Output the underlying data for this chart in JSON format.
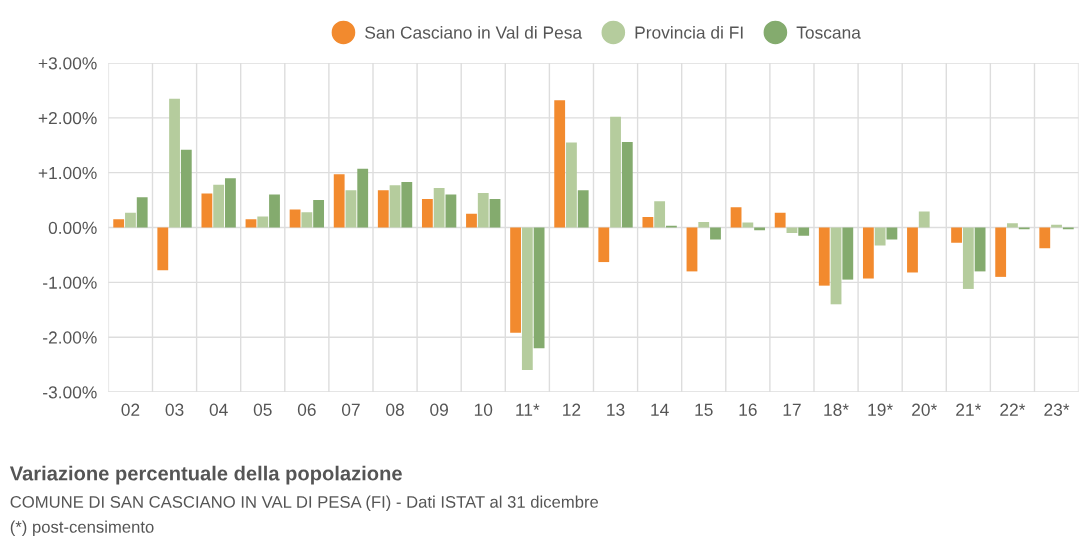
{
  "chart_data": {
    "type": "bar",
    "title": "Variazione percentuale della popolazione",
    "subtitle": "COMUNE DI SAN CASCIANO IN VAL DI PESA (FI) - Dati ISTAT al 31 dicembre",
    "annotations": [
      "(*) post-censimento"
    ],
    "categories": [
      "02",
      "03",
      "04",
      "05",
      "06",
      "07",
      "08",
      "09",
      "10",
      "11*",
      "12",
      "13",
      "14",
      "15",
      "16",
      "17",
      "18*",
      "19*",
      "20*",
      "21*",
      "22*",
      "23*"
    ],
    "series": [
      {
        "name": "San Casciano in Val di Pesa",
        "color": "#f28a2e",
        "values": [
          0.15,
          -0.78,
          0.62,
          0.15,
          0.33,
          0.97,
          0.68,
          0.52,
          0.25,
          -1.92,
          2.32,
          -0.63,
          0.19,
          -0.8,
          0.37,
          0.27,
          -1.06,
          -0.93,
          -0.82,
          -0.28,
          -0.9,
          -0.38
        ]
      },
      {
        "name": "Provincia di FI",
        "color": "#b5cc9d",
        "values": [
          0.27,
          2.35,
          0.78,
          0.2,
          0.28,
          0.68,
          0.77,
          0.72,
          0.63,
          -2.6,
          1.55,
          2.02,
          0.48,
          0.1,
          0.09,
          -0.1,
          -1.4,
          -0.33,
          0.29,
          -1.12,
          0.08,
          0.05
        ]
      },
      {
        "name": "Toscana",
        "color": "#84ab6e",
        "values": [
          0.55,
          1.42,
          0.9,
          0.6,
          0.5,
          1.07,
          0.83,
          0.6,
          0.52,
          -2.2,
          0.68,
          1.56,
          0.03,
          -0.22,
          -0.05,
          -0.15,
          -0.95,
          -0.22,
          null,
          -0.8,
          -0.03,
          -0.03
        ]
      }
    ],
    "ylim": [
      -3,
      3
    ],
    "yticks": [
      {
        "value": 3,
        "label": "+3.00%"
      },
      {
        "value": 2,
        "label": "+2.00%"
      },
      {
        "value": 1,
        "label": "+1.00%"
      },
      {
        "value": 0,
        "label": "0.00%"
      },
      {
        "value": -1,
        "label": "-1.00%"
      },
      {
        "value": -2,
        "label": "-2.00%"
      },
      {
        "value": -3,
        "label": "-3.00%"
      }
    ],
    "grid": true,
    "legend": "top"
  }
}
